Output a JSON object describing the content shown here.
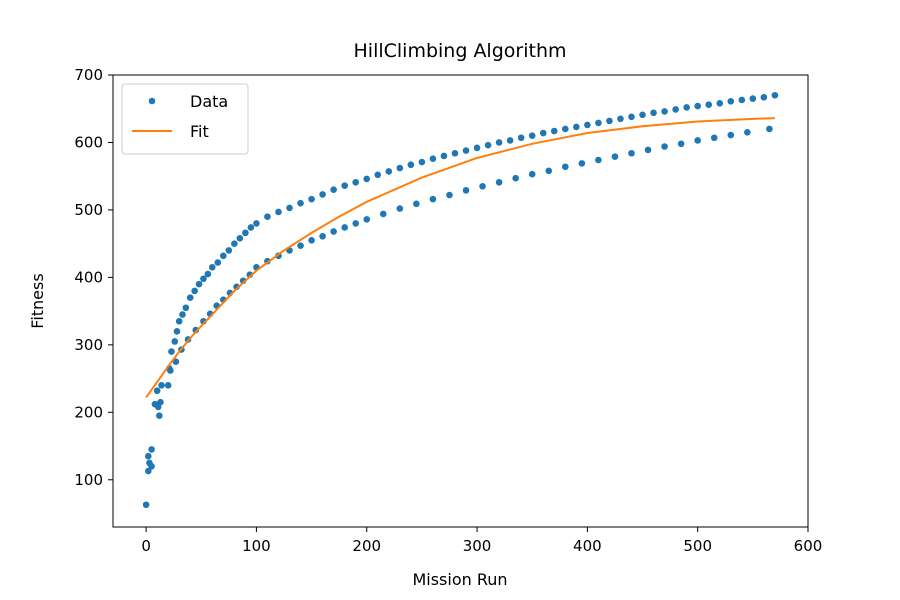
{
  "chart_data": {
    "type": "scatter",
    "title": "HillClimbing Algorithm",
    "xlabel": "Mission Run",
    "ylabel": "Fitness",
    "xlim": [
      -30,
      600
    ],
    "ylim": [
      30,
      700
    ],
    "xticks": [
      0,
      100,
      200,
      300,
      400,
      500,
      600
    ],
    "yticks": [
      100,
      200,
      300,
      400,
      500,
      600,
      700
    ],
    "grid": false,
    "legend_position": "top-left",
    "series": [
      {
        "name": "Data",
        "kind": "scatter",
        "color": "#1f77b4",
        "points": [
          [
            0,
            63
          ],
          [
            2,
            113
          ],
          [
            2,
            135
          ],
          [
            3,
            125
          ],
          [
            5,
            120
          ],
          [
            5,
            145
          ],
          [
            8,
            212
          ],
          [
            10,
            232
          ],
          [
            11,
            208
          ],
          [
            12,
            195
          ],
          [
            13,
            215
          ],
          [
            14,
            240
          ],
          [
            20,
            240
          ],
          [
            21,
            265
          ],
          [
            23,
            290
          ],
          [
            26,
            305
          ],
          [
            28,
            320
          ],
          [
            30,
            335
          ],
          [
            33,
            345
          ],
          [
            36,
            355
          ],
          [
            40,
            370
          ],
          [
            44,
            380
          ],
          [
            48,
            390
          ],
          [
            52,
            398
          ],
          [
            56,
            405
          ],
          [
            60,
            415
          ],
          [
            65,
            422
          ],
          [
            70,
            432
          ],
          [
            75,
            440
          ],
          [
            80,
            450
          ],
          [
            85,
            458
          ],
          [
            90,
            466
          ],
          [
            95,
            474
          ],
          [
            100,
            480
          ],
          [
            110,
            490
          ],
          [
            120,
            497
          ],
          [
            130,
            503
          ],
          [
            140,
            510
          ],
          [
            150,
            516
          ],
          [
            160,
            523
          ],
          [
            170,
            530
          ],
          [
            180,
            536
          ],
          [
            190,
            541
          ],
          [
            200,
            546
          ],
          [
            210,
            552
          ],
          [
            220,
            557
          ],
          [
            230,
            562
          ],
          [
            240,
            567
          ],
          [
            250,
            571
          ],
          [
            260,
            576
          ],
          [
            270,
            580
          ],
          [
            280,
            584
          ],
          [
            290,
            588
          ],
          [
            300,
            592
          ],
          [
            310,
            596
          ],
          [
            320,
            600
          ],
          [
            330,
            603
          ],
          [
            340,
            607
          ],
          [
            350,
            610
          ],
          [
            360,
            614
          ],
          [
            370,
            617
          ],
          [
            380,
            620
          ],
          [
            390,
            623
          ],
          [
            400,
            626
          ],
          [
            410,
            629
          ],
          [
            420,
            632
          ],
          [
            430,
            635
          ],
          [
            440,
            638
          ],
          [
            450,
            641
          ],
          [
            460,
            644
          ],
          [
            470,
            646
          ],
          [
            480,
            649
          ],
          [
            490,
            652
          ],
          [
            500,
            654
          ],
          [
            510,
            656
          ],
          [
            520,
            658
          ],
          [
            530,
            661
          ],
          [
            540,
            663
          ],
          [
            550,
            665
          ],
          [
            560,
            667
          ],
          [
            570,
            670
          ],
          [
            22,
            262
          ],
          [
            27,
            275
          ],
          [
            32,
            293
          ],
          [
            38,
            308
          ],
          [
            45,
            322
          ],
          [
            52,
            335
          ],
          [
            58,
            346
          ],
          [
            64,
            358
          ],
          [
            70,
            367
          ],
          [
            76,
            377
          ],
          [
            82,
            386
          ],
          [
            88,
            395
          ],
          [
            94,
            404
          ],
          [
            100,
            415
          ],
          [
            110,
            424
          ],
          [
            120,
            432
          ],
          [
            130,
            440
          ],
          [
            140,
            447
          ],
          [
            150,
            455
          ],
          [
            160,
            461
          ],
          [
            170,
            468
          ],
          [
            180,
            474
          ],
          [
            190,
            480
          ],
          [
            200,
            486
          ],
          [
            215,
            494
          ],
          [
            230,
            502
          ],
          [
            245,
            509
          ],
          [
            260,
            516
          ],
          [
            275,
            522
          ],
          [
            290,
            529
          ],
          [
            305,
            535
          ],
          [
            320,
            541
          ],
          [
            335,
            547
          ],
          [
            350,
            553
          ],
          [
            365,
            558
          ],
          [
            380,
            564
          ],
          [
            395,
            569
          ],
          [
            410,
            574
          ],
          [
            425,
            579
          ],
          [
            440,
            584
          ],
          [
            455,
            589
          ],
          [
            470,
            594
          ],
          [
            485,
            598
          ],
          [
            500,
            603
          ],
          [
            515,
            607
          ],
          [
            530,
            611
          ],
          [
            545,
            615
          ],
          [
            565,
            620
          ]
        ]
      },
      {
        "name": "Fit",
        "kind": "line",
        "color": "#ff7f0e",
        "x": [
          0,
          10,
          20,
          30,
          40,
          50,
          60,
          80,
          100,
          125,
          150,
          175,
          200,
          250,
          300,
          350,
          400,
          450,
          500,
          550,
          570
        ],
        "y": [
          222,
          245,
          268,
          290,
          310,
          328,
          345,
          380,
          410,
          440,
          466,
          490,
          512,
          548,
          577,
          598,
          614,
          624,
          631,
          635,
          636
        ]
      }
    ]
  }
}
